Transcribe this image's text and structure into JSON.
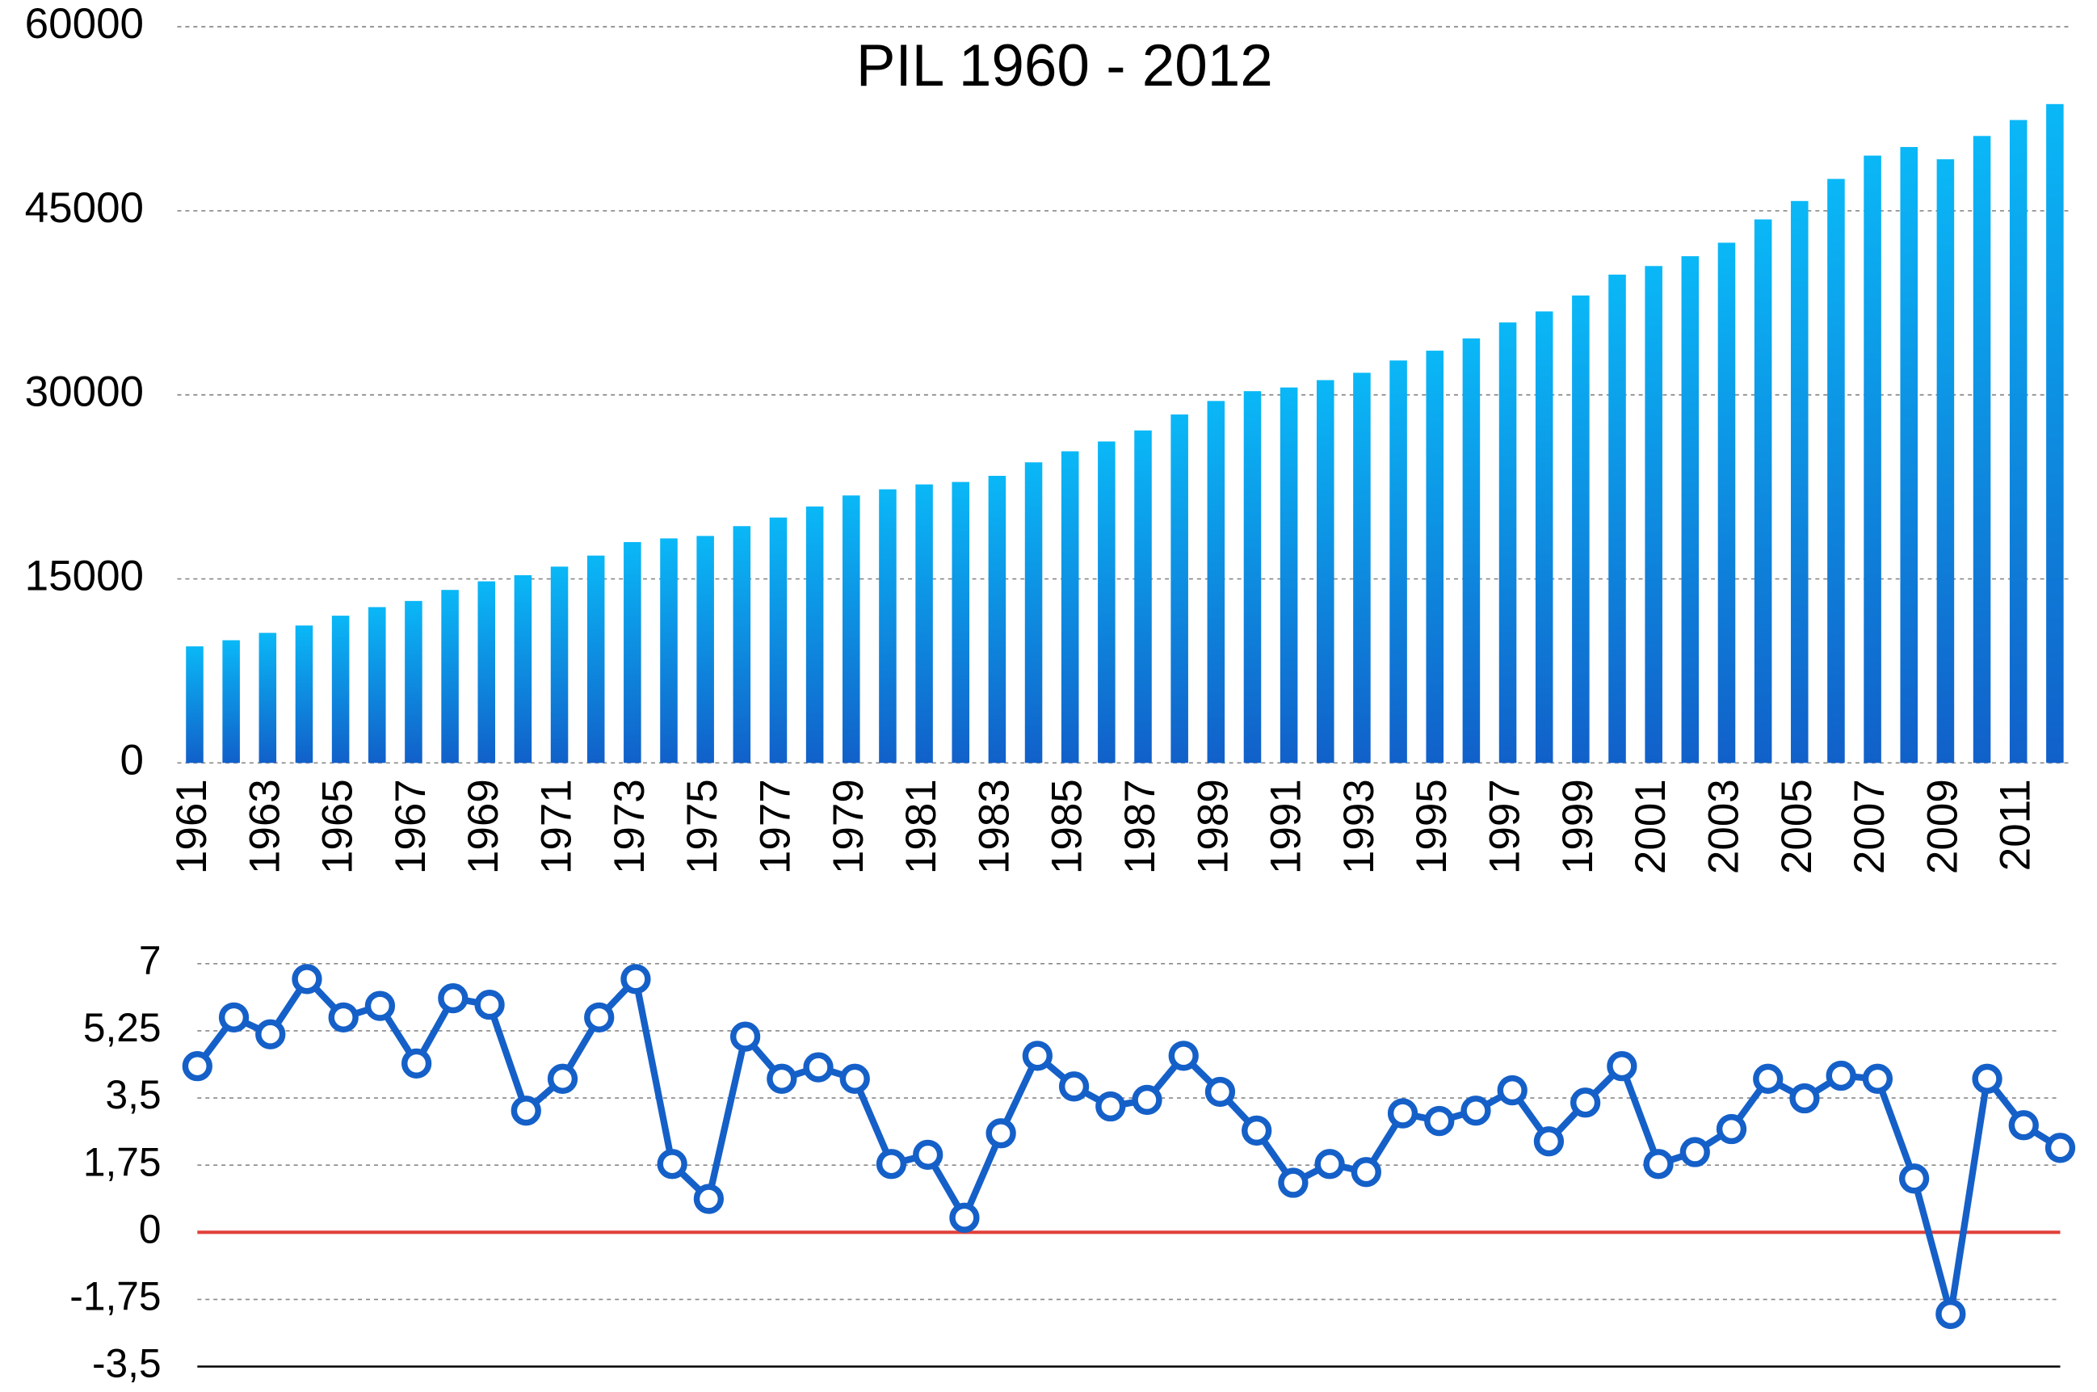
{
  "chart_data": [
    {
      "type": "bar",
      "title": "PIL 1960 - 2012",
      "categories": [
        "1961",
        null,
        "1963",
        null,
        "1965",
        null,
        "1967",
        null,
        "1969",
        null,
        "1971",
        null,
        "1973",
        null,
        "1975",
        null,
        "1977",
        null,
        "1979",
        null,
        "1981",
        null,
        "1983",
        null,
        "1985",
        null,
        "1987",
        null,
        "1989",
        null,
        "1991",
        null,
        "1993",
        null,
        "1995",
        null,
        "1997",
        null,
        "1999",
        null,
        "2001",
        null,
        "2003",
        null,
        "2005",
        null,
        "2007",
        null,
        "2009",
        null,
        "2011",
        null
      ],
      "values": [
        9500,
        10000,
        10600,
        11200,
        12000,
        12700,
        13200,
        14100,
        14800,
        15300,
        16000,
        16900,
        18000,
        18300,
        18500,
        19300,
        20000,
        20900,
        21800,
        22300,
        22700,
        22900,
        23400,
        24500,
        25400,
        26200,
        27100,
        28400,
        29500,
        30300,
        30600,
        31200,
        31800,
        32800,
        33600,
        34600,
        35900,
        36800,
        38100,
        39800,
        40500,
        41300,
        42400,
        44300,
        45800,
        47600,
        49500,
        50200,
        49200,
        51100,
        52400,
        53700
      ],
      "gradient": [
        "#0ab8f7",
        "#1160c9"
      ],
      "ylim": [
        0,
        60000
      ],
      "yticks": [
        0,
        15000,
        30000,
        45000,
        60000
      ],
      "grid": true
    },
    {
      "type": "line",
      "values": [
        4.33,
        5.6,
        5.16,
        6.6,
        5.6,
        5.9,
        4.4,
        6.1,
        5.93,
        3.17,
        4.0,
        5.6,
        6.6,
        1.78,
        0.87,
        5.1,
        4.0,
        4.3,
        4.0,
        1.78,
        2.02,
        0.38,
        2.58,
        4.6,
        3.8,
        3.28,
        3.45,
        4.6,
        3.66,
        2.65,
        1.29,
        1.78,
        1.57,
        3.1,
        2.9,
        3.17,
        3.7,
        2.37,
        3.38,
        4.33,
        1.78,
        2.09,
        2.69,
        4.0,
        3.49,
        4.08,
        4.0,
        1.4,
        -2.13,
        4.0,
        2.79,
        2.2
      ],
      "color": "#1560c8",
      "zero_line_color": "#e0403a",
      "ylim": [
        -3.5,
        7
      ],
      "yticks": [
        {
          "value": -3.5,
          "label": "-3,5"
        },
        {
          "value": -1.75,
          "label": "-1,75"
        },
        0,
        {
          "value": 1.75,
          "label": "1,75"
        },
        {
          "value": 3.5,
          "label": "3,5"
        },
        {
          "value": 5.25,
          "label": "5,25"
        },
        7
      ],
      "grid": true
    }
  ]
}
